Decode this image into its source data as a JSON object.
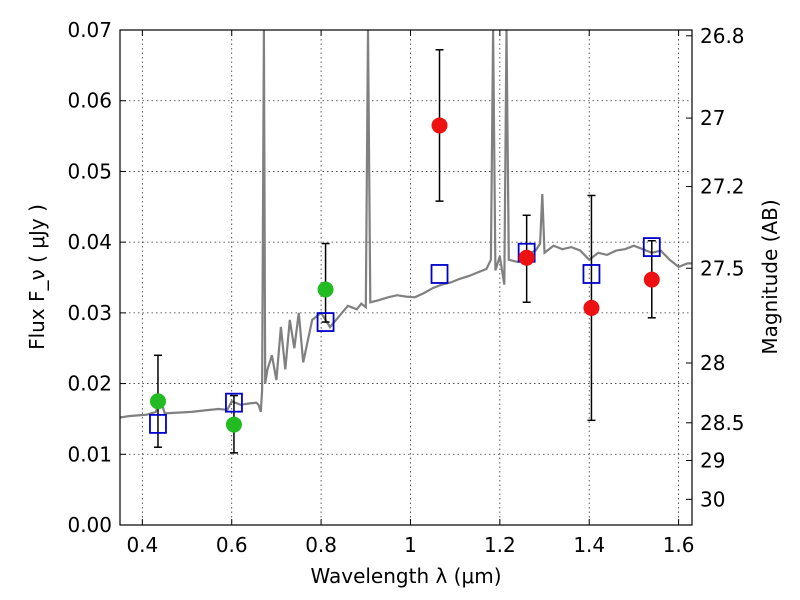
{
  "chart_data": {
    "type": "scatter",
    "title": "",
    "xlabel": "Wavelength  λ (μm)",
    "ylabel": "Flux  F_ν  ( μJy )",
    "y2label": "Magnitude (AB)",
    "xlim": [
      0.35,
      1.63
    ],
    "ylim": [
      0.0,
      0.07
    ],
    "grid": true,
    "x_ticks": [
      "0.4",
      "0.6",
      "0.8",
      "1",
      "1.2",
      "1.4",
      "1.6"
    ],
    "y_ticks": [
      "0.00",
      "0.01",
      "0.02",
      "0.03",
      "0.04",
      "0.05",
      "0.06",
      "0.07"
    ],
    "right_axis_ticks": [
      {
        "label": "26.8",
        "mag": 26.8
      },
      {
        "label": "27",
        "mag": 27.0
      },
      {
        "label": "27.2",
        "mag": 27.2
      },
      {
        "label": "27.5",
        "mag": 27.5
      },
      {
        "label": "28",
        "mag": 28.0
      },
      {
        "label": "28.5",
        "mag": 28.5
      },
      {
        "label": "29",
        "mag": 29.0
      },
      {
        "label": "30",
        "mag": 30.0
      }
    ],
    "series": [
      {
        "kind": "spectrum",
        "color": "#808080",
        "points": [
          [
            0.35,
            0.0152
          ],
          [
            0.37,
            0.0154
          ],
          [
            0.39,
            0.0155
          ],
          [
            0.41,
            0.0156
          ],
          [
            0.43,
            0.016
          ],
          [
            0.44,
            0.018
          ],
          [
            0.45,
            0.0158
          ],
          [
            0.48,
            0.0159
          ],
          [
            0.51,
            0.016
          ],
          [
            0.54,
            0.0162
          ],
          [
            0.57,
            0.0164
          ],
          [
            0.59,
            0.0163
          ],
          [
            0.6,
            0.0175
          ],
          [
            0.62,
            0.017
          ],
          [
            0.64,
            0.0172
          ],
          [
            0.655,
            0.0173
          ],
          [
            0.66,
            0.017
          ],
          [
            0.665,
            0.016
          ],
          [
            0.668,
            0.019
          ],
          [
            0.672,
            0.07
          ],
          [
            0.675,
            0.02
          ],
          [
            0.68,
            0.022
          ],
          [
            0.69,
            0.024
          ],
          [
            0.7,
            0.0205
          ],
          [
            0.71,
            0.028
          ],
          [
            0.72,
            0.022
          ],
          [
            0.73,
            0.029
          ],
          [
            0.74,
            0.025
          ],
          [
            0.75,
            0.03
          ],
          [
            0.76,
            0.023
          ],
          [
            0.78,
            0.029
          ],
          [
            0.8,
            0.03
          ],
          [
            0.82,
            0.028
          ],
          [
            0.84,
            0.0295
          ],
          [
            0.86,
            0.031
          ],
          [
            0.88,
            0.0305
          ],
          [
            0.89,
            0.0313
          ],
          [
            0.9,
            0.0308
          ],
          [
            0.905,
            0.07
          ],
          [
            0.91,
            0.0315
          ],
          [
            0.93,
            0.0318
          ],
          [
            0.95,
            0.0322
          ],
          [
            0.97,
            0.0325
          ],
          [
            0.99,
            0.0323
          ],
          [
            1.01,
            0.0322
          ],
          [
            1.03,
            0.0328
          ],
          [
            1.05,
            0.0335
          ],
          [
            1.07,
            0.034
          ],
          [
            1.09,
            0.0343
          ],
          [
            1.11,
            0.0348
          ],
          [
            1.13,
            0.0352
          ],
          [
            1.15,
            0.0357
          ],
          [
            1.17,
            0.0362
          ],
          [
            1.18,
            0.0375
          ],
          [
            1.185,
            0.07
          ],
          [
            1.19,
            0.036
          ],
          [
            1.2,
            0.038
          ],
          [
            1.21,
            0.034
          ],
          [
            1.215,
            0.07
          ],
          [
            1.22,
            0.0375
          ],
          [
            1.24,
            0.0372
          ],
          [
            1.26,
            0.0383
          ],
          [
            1.28,
            0.0388
          ],
          [
            1.29,
            0.0398
          ],
          [
            1.295,
            0.0468
          ],
          [
            1.3,
            0.0385
          ],
          [
            1.32,
            0.0395
          ],
          [
            1.34,
            0.039
          ],
          [
            1.36,
            0.0393
          ],
          [
            1.38,
            0.0388
          ],
          [
            1.4,
            0.0375
          ],
          [
            1.42,
            0.0385
          ],
          [
            1.44,
            0.0382
          ],
          [
            1.46,
            0.0388
          ],
          [
            1.48,
            0.039
          ],
          [
            1.5,
            0.0395
          ],
          [
            1.52,
            0.039
          ],
          [
            1.54,
            0.0385
          ],
          [
            1.56,
            0.0388
          ],
          [
            1.58,
            0.0375
          ],
          [
            1.6,
            0.0365
          ],
          [
            1.62,
            0.037
          ],
          [
            1.63,
            0.037
          ]
        ]
      },
      {
        "kind": "model_photometry",
        "marker": "open-square",
        "color": "#0000cc",
        "points": [
          {
            "x": 0.435,
            "y": 0.0143
          },
          {
            "x": 0.605,
            "y": 0.0173
          },
          {
            "x": 0.81,
            "y": 0.0287
          },
          {
            "x": 1.065,
            "y": 0.0355
          },
          {
            "x": 1.26,
            "y": 0.0385
          },
          {
            "x": 1.405,
            "y": 0.0355
          },
          {
            "x": 1.54,
            "y": 0.0393
          }
        ]
      },
      {
        "kind": "detections_optical",
        "marker": "filled-circle",
        "color": "#22bb22",
        "points": [
          {
            "x": 0.435,
            "y": 0.0175,
            "err_low": 0.011,
            "err_high": 0.024
          },
          {
            "x": 0.605,
            "y": 0.0142,
            "err_low": 0.0102,
            "err_high": 0.0183
          },
          {
            "x": 0.81,
            "y": 0.0333,
            "err_low": 0.0287,
            "err_high": 0.0398
          }
        ]
      },
      {
        "kind": "detections_nir",
        "marker": "filled-circle",
        "color": "#ee1111",
        "points": [
          {
            "x": 1.065,
            "y": 0.0565,
            "err_low": 0.0458,
            "err_high": 0.0672
          },
          {
            "x": 1.26,
            "y": 0.0378,
            "err_low": 0.0315,
            "err_high": 0.0438
          },
          {
            "x": 1.405,
            "y": 0.0307,
            "err_low": 0.0148,
            "err_high": 0.0466
          },
          {
            "x": 1.54,
            "y": 0.0347,
            "err_low": 0.0293,
            "err_high": 0.0402
          }
        ]
      }
    ]
  }
}
